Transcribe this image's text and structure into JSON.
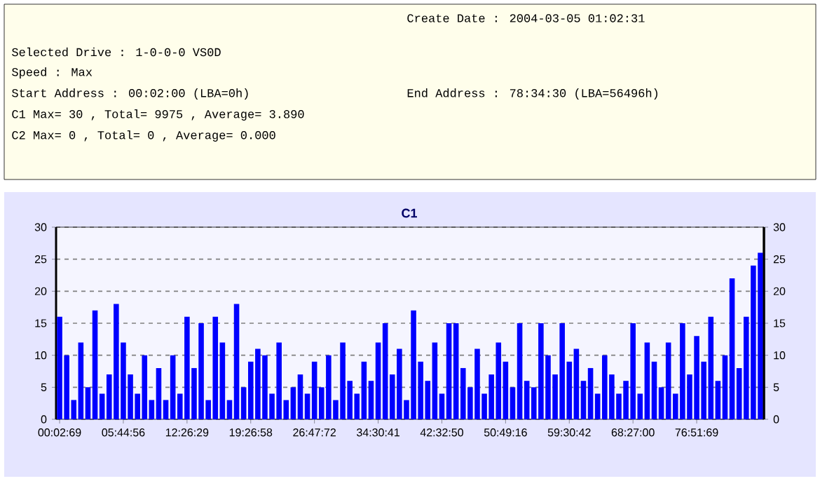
{
  "chart_data": {
    "type": "bar",
    "title": "C1",
    "annotations": [
      "Create Date : 2004-03-05 01:02:31",
      "Selected Drive : 1-0-0-0 VS0D",
      "Speed : Max",
      "Start Address : 00:02:00 (LBA=0h)",
      "End Address : 78:34:30 (LBA=56496h)",
      "C1 Max= 30 , Total= 9975 , Average= 3.890",
      "C2 Max= 0 , Total= 0 , Average= 0.000"
    ],
    "categories": [
      "00:02:69",
      null,
      null,
      null,
      null,
      null,
      null,
      null,
      null,
      "05:44:56",
      null,
      null,
      null,
      null,
      null,
      null,
      null,
      null,
      "12:26:29",
      null,
      null,
      null,
      null,
      null,
      null,
      null,
      null,
      "19:26:58",
      null,
      null,
      null,
      null,
      null,
      null,
      null,
      null,
      "26:47:72",
      null,
      null,
      null,
      null,
      null,
      null,
      null,
      null,
      "34:30:41",
      null,
      null,
      null,
      null,
      null,
      null,
      null,
      null,
      "42:32:50",
      null,
      null,
      null,
      null,
      null,
      null,
      null,
      null,
      "50:49:16",
      null,
      null,
      null,
      null,
      null,
      null,
      null,
      null,
      "59:30:42",
      null,
      null,
      null,
      null,
      null,
      null,
      null,
      null,
      "68:27:00",
      null,
      null,
      null,
      null,
      null,
      null,
      null,
      null,
      "76:51:69",
      null,
      null,
      null,
      null,
      null,
      null,
      null,
      null,
      null
    ],
    "values": [
      16,
      10,
      3,
      12,
      5,
      17,
      4,
      7,
      18,
      12,
      7,
      4,
      10,
      3,
      8,
      3,
      10,
      4,
      16,
      8,
      15,
      3,
      16,
      12,
      3,
      18,
      5,
      9,
      11,
      10,
      4,
      12,
      3,
      5,
      7,
      4,
      9,
      5,
      10,
      3,
      12,
      6,
      4,
      9,
      6,
      12,
      15,
      7,
      11,
      3,
      17,
      9,
      6,
      12,
      4,
      15,
      15,
      8,
      5,
      11,
      4,
      7,
      12,
      9,
      5,
      15,
      6,
      5,
      15,
      10,
      7,
      15,
      9,
      11,
      6,
      8,
      4,
      10,
      7,
      4,
      6,
      15,
      4,
      12,
      9,
      5,
      12,
      4,
      15,
      7,
      13,
      9,
      16,
      6,
      10,
      22,
      8,
      16,
      24,
      26
    ],
    "color": "#0000ff",
    "ylim": [
      0,
      30
    ],
    "yticks": [
      0,
      5,
      10,
      15,
      20,
      25,
      30
    ],
    "y2lim": [
      0,
      30
    ],
    "y2ticks": [
      0,
      5,
      10,
      15,
      20,
      25,
      30
    ],
    "grid": "y"
  }
}
